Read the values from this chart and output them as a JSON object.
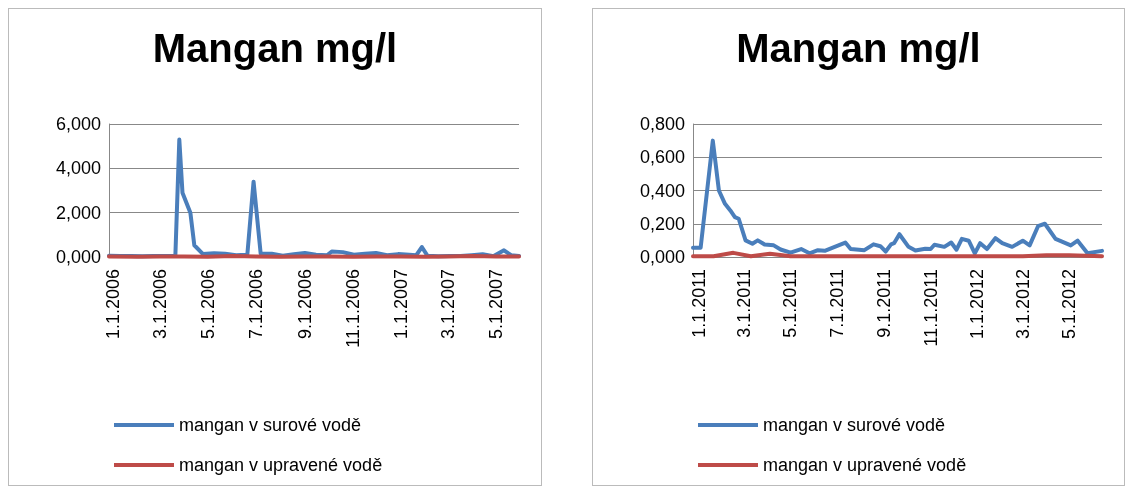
{
  "chart_data": [
    {
      "type": "line",
      "title": "Mangan mg/l",
      "grid": "y",
      "legend": "bottom",
      "marker": "none",
      "line_style": "solid",
      "xlim": [
        "2005-12-27",
        "2007-05-30"
      ],
      "xticks": [
        {
          "value": "2006-01-01",
          "label": "1.1.2006"
        },
        {
          "value": "2006-03-01",
          "label": "3.1.2006"
        },
        {
          "value": "2006-05-01",
          "label": "5.1.2006"
        },
        {
          "value": "2006-07-01",
          "label": "7.1.2006"
        },
        {
          "value": "2006-09-01",
          "label": "9.1.2006"
        },
        {
          "value": "2006-11-01",
          "label": "11.1.2006"
        },
        {
          "value": "2007-01-01",
          "label": "1.1.2007"
        },
        {
          "value": "2007-03-01",
          "label": "3.1.2007"
        },
        {
          "value": "2007-05-01",
          "label": "5.1.2007"
        }
      ],
      "ylim": [
        0,
        6
      ],
      "yticks": [
        {
          "value": 0,
          "label": "0,000"
        },
        {
          "value": 2,
          "label": "2,000"
        },
        {
          "value": 4,
          "label": "4,000"
        },
        {
          "value": 6,
          "label": "6,000"
        }
      ],
      "series": [
        {
          "name": "mangan v surové vodě",
          "color": "#4a7ebb",
          "x": [
            "2005-12-27",
            "2006-01-10",
            "2006-01-24",
            "2006-02-07",
            "2006-02-21",
            "2006-03-07",
            "2006-03-21",
            "2006-03-26",
            "2006-03-30",
            "2006-04-09",
            "2006-04-14",
            "2006-04-25",
            "2006-05-09",
            "2006-05-23",
            "2006-06-06",
            "2006-06-18",
            "2006-06-20",
            "2006-06-28",
            "2006-07-07",
            "2006-07-21",
            "2006-08-04",
            "2006-08-18",
            "2006-09-01",
            "2006-09-15",
            "2006-09-29",
            "2006-10-05",
            "2006-10-19",
            "2006-11-02",
            "2006-11-16",
            "2006-11-30",
            "2006-12-14",
            "2006-12-28",
            "2007-01-11",
            "2007-01-20",
            "2007-01-27",
            "2007-02-03",
            "2007-02-17",
            "2007-03-03",
            "2007-03-17",
            "2007-03-31",
            "2007-04-14",
            "2007-04-28",
            "2007-05-11",
            "2007-05-20",
            "2007-05-30"
          ],
          "values": [
            0.06,
            0.04,
            0.05,
            0.03,
            0.04,
            0.05,
            0.06,
            5.3,
            2.9,
            2.0,
            0.53,
            0.13,
            0.17,
            0.15,
            0.08,
            0.1,
            0.06,
            3.4,
            0.15,
            0.15,
            0.06,
            0.12,
            0.18,
            0.1,
            0.08,
            0.25,
            0.22,
            0.1,
            0.15,
            0.18,
            0.08,
            0.13,
            0.1,
            0.08,
            0.45,
            0.06,
            0.03,
            0.04,
            0.05,
            0.08,
            0.12,
            0.04,
            0.3,
            0.08,
            0.05
          ]
        },
        {
          "name": "mangan v upravené vodě",
          "color": "#be4b48",
          "x": [
            "2005-12-27",
            "2006-02-01",
            "2006-03-01",
            "2006-04-01",
            "2006-05-01",
            "2006-06-01",
            "2006-07-01",
            "2006-08-01",
            "2006-09-01",
            "2006-10-01",
            "2006-11-01",
            "2006-12-01",
            "2007-01-01",
            "2007-02-01",
            "2007-03-01",
            "2007-04-01",
            "2007-05-01",
            "2007-05-30"
          ],
          "values": [
            0.02,
            0.01,
            0.02,
            0.02,
            0.01,
            0.04,
            0.02,
            0.01,
            0.02,
            0.02,
            0.01,
            0.02,
            0.02,
            0.01,
            0.02,
            0.04,
            0.02,
            0.02
          ]
        }
      ]
    },
    {
      "type": "line",
      "title": "Mangan mg/l",
      "grid": "y",
      "legend": "bottom",
      "marker": "none",
      "line_style": "solid",
      "xlim": [
        "2010-12-24",
        "2012-06-13"
      ],
      "xticks": [
        {
          "value": "2011-01-01",
          "label": "1.1.2011"
        },
        {
          "value": "2011-03-01",
          "label": "3.1.2011"
        },
        {
          "value": "2011-05-01",
          "label": "5.1.2011"
        },
        {
          "value": "2011-07-01",
          "label": "7.1.2011"
        },
        {
          "value": "2011-09-01",
          "label": "9.1.2011"
        },
        {
          "value": "2011-11-01",
          "label": "11.1.2011"
        },
        {
          "value": "2012-01-01",
          "label": "1.1.2012"
        },
        {
          "value": "2012-03-01",
          "label": "3.1.2012"
        },
        {
          "value": "2012-05-01",
          "label": "5.1.2012"
        }
      ],
      "ylim": [
        0,
        0.8
      ],
      "yticks": [
        {
          "value": 0,
          "label": "0,000"
        },
        {
          "value": 0.2,
          "label": "0,200"
        },
        {
          "value": 0.4,
          "label": "0,400"
        },
        {
          "value": 0.6,
          "label": "0,600"
        },
        {
          "value": 0.8,
          "label": "0,800"
        }
      ],
      "series": [
        {
          "name": "mangan v surové vodě",
          "color": "#4a7ebb",
          "x": [
            "2010-12-24",
            "2011-01-03",
            "2011-01-19",
            "2011-01-27",
            "2011-02-04",
            "2011-02-11",
            "2011-02-17",
            "2011-02-22",
            "2011-03-03",
            "2011-03-12",
            "2011-03-19",
            "2011-03-28",
            "2011-04-09",
            "2011-04-18",
            "2011-05-01",
            "2011-05-15",
            "2011-05-26",
            "2011-06-06",
            "2011-06-15",
            "2011-07-12",
            "2011-07-19",
            "2011-08-06",
            "2011-08-18",
            "2011-08-27",
            "2011-09-03",
            "2011-09-10",
            "2011-09-14",
            "2011-09-21",
            "2011-10-03",
            "2011-10-12",
            "2011-10-25",
            "2011-11-01",
            "2011-11-06",
            "2011-11-19",
            "2011-11-28",
            "2011-12-05",
            "2011-12-12",
            "2011-12-21",
            "2011-12-29",
            "2012-01-05",
            "2012-01-14",
            "2012-01-25",
            "2012-02-03",
            "2012-02-16",
            "2012-03-01",
            "2012-03-10",
            "2012-03-21",
            "2012-03-30",
            "2012-04-13",
            "2012-05-03",
            "2012-05-12",
            "2012-05-25",
            "2012-06-13"
          ],
          "values": [
            0.055,
            0.055,
            0.7,
            0.4,
            0.32,
            0.28,
            0.24,
            0.23,
            0.1,
            0.08,
            0.1,
            0.075,
            0.07,
            0.045,
            0.026,
            0.048,
            0.022,
            0.041,
            0.037,
            0.087,
            0.048,
            0.041,
            0.076,
            0.065,
            0.033,
            0.076,
            0.083,
            0.137,
            0.061,
            0.039,
            0.05,
            0.048,
            0.074,
            0.061,
            0.087,
            0.044,
            0.109,
            0.098,
            0.022,
            0.083,
            0.048,
            0.113,
            0.083,
            0.061,
            0.098,
            0.07,
            0.185,
            0.2,
            0.109,
            0.07,
            0.098,
            0.022,
            0.037
          ]
        },
        {
          "name": "mangan v upravené vodě",
          "color": "#be4b48",
          "x": [
            "2010-12-24",
            "2011-01-20",
            "2011-02-15",
            "2011-03-10",
            "2011-04-04",
            "2011-05-01",
            "2011-06-01",
            "2011-07-01",
            "2011-08-01",
            "2011-09-01",
            "2011-10-01",
            "2011-11-01",
            "2011-12-01",
            "2012-01-01",
            "2012-02-01",
            "2012-03-01",
            "2012-04-01",
            "2012-05-01",
            "2012-06-13"
          ],
          "values": [
            0.005,
            0.005,
            0.025,
            0.005,
            0.02,
            0.005,
            0.005,
            0.005,
            0.005,
            0.005,
            0.005,
            0.005,
            0.005,
            0.005,
            0.005,
            0.005,
            0.01,
            0.01,
            0.005
          ]
        }
      ]
    }
  ]
}
